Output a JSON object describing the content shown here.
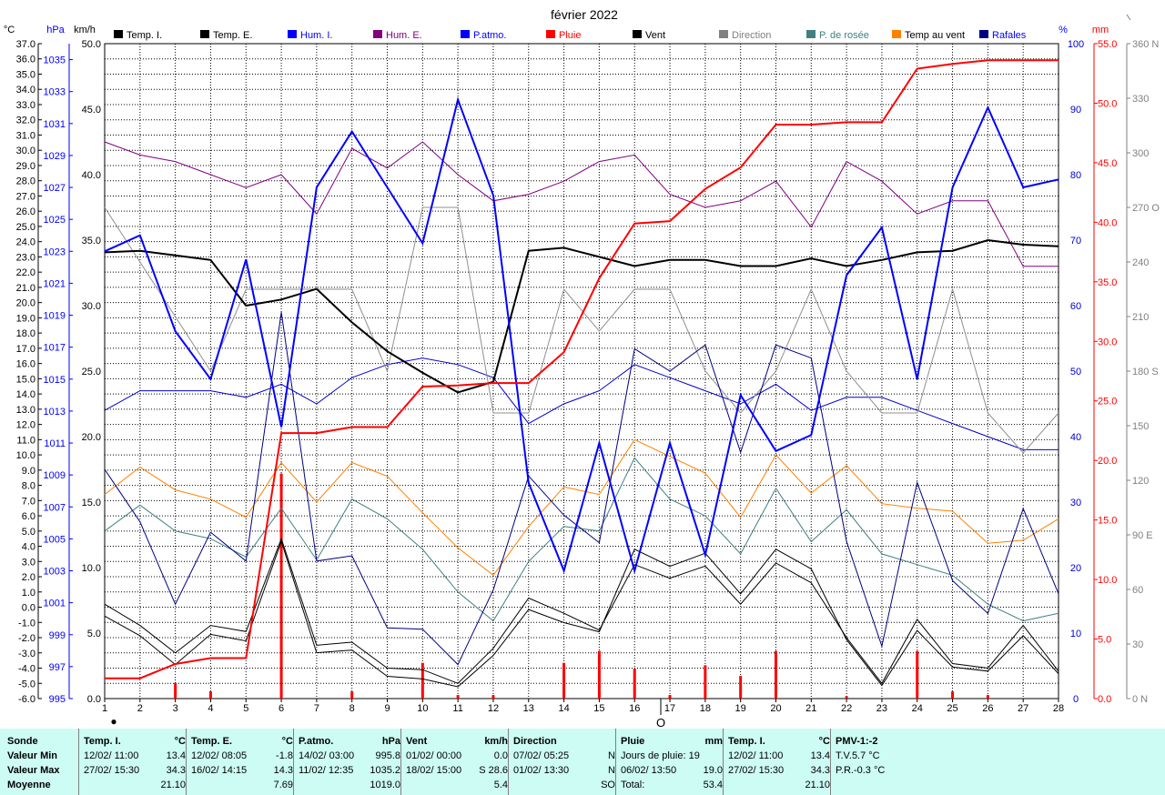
{
  "chart_data": {
    "type": "line",
    "title": "février 2022",
    "x": [
      1,
      2,
      3,
      4,
      5,
      6,
      7,
      8,
      9,
      10,
      11,
      12,
      13,
      14,
      15,
      16,
      17,
      18,
      19,
      20,
      21,
      22,
      23,
      24,
      25,
      26,
      27,
      28
    ],
    "x_tick_labels": [
      "1",
      "2",
      "3",
      "4",
      "5",
      "6",
      "7",
      "8",
      "9",
      "10",
      "11",
      "12",
      "13",
      "14",
      "15",
      "16",
      "17",
      "18",
      "19",
      "20",
      "21",
      "22",
      "23",
      "24",
      "25",
      "26",
      "27",
      "28"
    ],
    "x_markers": [
      "●",
      "O"
    ],
    "axes": {
      "temp_c": {
        "unit": "°C",
        "range": [
          -6.0,
          37.0
        ],
        "ticks": [
          "37.0",
          "36.0",
          "35.0",
          "34.0",
          "33.0",
          "32.0",
          "31.0",
          "30.0",
          "29.0",
          "28.0",
          "27.0",
          "26.0",
          "25.0",
          "24.0",
          "23.0",
          "22.0",
          "21.0",
          "20.0",
          "19.0",
          "18.0",
          "17.0",
          "16.0",
          "15.0",
          "14.0",
          "13.0",
          "12.0",
          "11.0",
          "10.0",
          "9.0",
          "8.0",
          "7.0",
          "6.0",
          "5.0",
          "4.0",
          "3.0",
          "2.0",
          "1.0",
          "0.0",
          "-1.0",
          "-2.0",
          "-3.0",
          "-4.0",
          "-5.0",
          "-6.0"
        ]
      },
      "pressure_hpa": {
        "unit": "hPa",
        "range": [
          995,
          1036
        ],
        "ticks": [
          "1035",
          "1033",
          "1031",
          "1029",
          "1027",
          "1025",
          "1023",
          "1021",
          "1019",
          "1017",
          "1015",
          "1013",
          "1011",
          "1009",
          "1007",
          "1005",
          "1003",
          "1001",
          "999",
          "997",
          "995"
        ]
      },
      "wind_kmh": {
        "unit": "km/h",
        "range": [
          0.0,
          50.0
        ],
        "ticks": [
          "50.0",
          "45.0",
          "40.0",
          "35.0",
          "30.0",
          "25.0",
          "20.0",
          "15.0",
          "10.0",
          "5.0",
          "0.0"
        ]
      },
      "humidity_pct": {
        "unit": "%",
        "range": [
          0,
          100
        ],
        "ticks": [
          "100",
          "90",
          "80",
          "70",
          "60",
          "50",
          "40",
          "30",
          "20",
          "10",
          "0"
        ]
      },
      "rain_mm": {
        "unit": "mm",
        "range": [
          0.0,
          55.0
        ],
        "ticks": [
          "55.0",
          "50.0",
          "45.0",
          "40.0",
          "35.0",
          "30.0",
          "25.0",
          "20.0",
          "15.0",
          "10.0",
          "5.0",
          "0.0"
        ]
      },
      "direction_deg": {
        "unit": "",
        "range": [
          0,
          360
        ],
        "ticks": [
          "360 N",
          "330",
          "300",
          "270 O",
          "240",
          "210",
          "180 S",
          "150",
          "120",
          "90 E",
          "60",
          "30",
          "0 N"
        ]
      }
    },
    "grid": true,
    "legend_position": "top",
    "series": [
      {
        "name": "Temp. I.",
        "axis": "temp_c",
        "color": "#000000",
        "width": 2,
        "values": [
          23.3,
          23.4,
          23.1,
          22.8,
          19.8,
          20.2,
          20.9,
          18.7,
          16.8,
          15.4,
          14.1,
          14.8,
          23.4,
          23.6,
          23.0,
          22.4,
          22.8,
          22.8,
          22.4,
          22.4,
          22.9,
          22.4,
          22.8,
          23.3,
          23.4,
          24.1,
          23.8,
          23.7
        ]
      },
      {
        "name": "Temp. E.",
        "axis": "temp_c",
        "color": "#000000",
        "width": 1,
        "values": [
          0.2,
          -1.2,
          -3.0,
          -1.2,
          -1.6,
          4.5,
          -2.5,
          -2.3,
          -4.0,
          -4.1,
          -5.0,
          -2.7,
          0.6,
          -0.4,
          -1.5,
          2.8,
          1.9,
          2.7,
          0.2,
          2.9,
          1.6,
          -2.0,
          -5.0,
          -0.8,
          -3.7,
          -4.0,
          -1.2,
          -4.2
        ]
      },
      {
        "name": "Hum. I.",
        "axis": "humidity_pct",
        "color": "#0000cc",
        "width": 1,
        "values": [
          44,
          47,
          47,
          47,
          46,
          48,
          45,
          49,
          51,
          52,
          51,
          49,
          42,
          45,
          47,
          51,
          49,
          47,
          45,
          48,
          44,
          46,
          46,
          44,
          42,
          40,
          38,
          38
        ]
      },
      {
        "name": "Hum. E.",
        "axis": "humidity_pct",
        "color": "#800080",
        "width": 1,
        "values": [
          85,
          83,
          82,
          80,
          78,
          80,
          74,
          84,
          81,
          85,
          80,
          76,
          77,
          79,
          82,
          83,
          77,
          75,
          76,
          79,
          72,
          82,
          79,
          74,
          76,
          76,
          66,
          66
        ]
      },
      {
        "name": "P.atmo.",
        "axis": "pressure_hpa",
        "color": "#0000ff",
        "width": 2,
        "values": [
          1023,
          1024,
          1018,
          1015,
          1022.5,
          1012,
          1027,
          1030.5,
          1027,
          1023.5,
          1032.5,
          1026.5,
          1008.5,
          1003,
          1011,
          1003,
          1011,
          1004,
          1014,
          1010.5,
          1011.5,
          1021.5,
          1024.5,
          1015,
          1027,
          1032,
          1027,
          1027.5
        ]
      },
      {
        "name": "Pluie",
        "axis": "rain_mm",
        "color": "#ff0000",
        "width": 2,
        "values": [
          1.7,
          1.7,
          2.9,
          3.4,
          3.4,
          22.3,
          22.3,
          22.8,
          22.8,
          26.2,
          26.3,
          26.5,
          26.5,
          29.1,
          35.3,
          39.9,
          40.1,
          42.8,
          44.6,
          48.2,
          48.2,
          48.4,
          48.4,
          52.9,
          53.3,
          53.6,
          53.6,
          53.6
        ]
      },
      {
        "name": "Vent",
        "axis": "wind_kmh",
        "color": "#000000",
        "width": 1,
        "values": [
          6.3,
          4.8,
          2.6,
          4.9,
          4.4,
          12.0,
          3.5,
          3.7,
          1.7,
          1.5,
          0.9,
          3.3,
          6.8,
          5.8,
          5.1,
          11.4,
          10.1,
          11.1,
          8.0,
          11.4,
          9.9,
          4.5,
          1.0,
          5.2,
          2.4,
          2.1,
          4.8,
          1.9
        ]
      },
      {
        "name": "Direction",
        "axis": "direction_deg",
        "color": "#909090",
        "width": 1,
        "values": [
          270,
          240,
          210,
          180,
          225,
          225,
          225,
          225,
          180,
          270,
          270,
          157,
          157,
          225,
          202,
          225,
          225,
          180,
          157,
          180,
          225,
          180,
          157,
          157,
          225,
          157,
          135,
          157
        ]
      },
      {
        "name": "P. de rosée",
        "axis": "temp_c",
        "color": "#408080",
        "width": 1,
        "values": [
          5.0,
          6.7,
          5.0,
          4.5,
          3.3,
          6.5,
          3.1,
          7.1,
          5.8,
          3.8,
          1.0,
          -0.9,
          3.0,
          5.3,
          5.0,
          9.8,
          7.1,
          6.0,
          3.5,
          7.8,
          4.3,
          6.4,
          3.5,
          2.8,
          2.1,
          0.2,
          -0.9,
          -0.4
        ]
      },
      {
        "name": "Temp au vent",
        "axis": "temp_c",
        "color": "#ff8000",
        "width": 1,
        "values": [
          7.4,
          9.2,
          7.7,
          7.1,
          5.9,
          9.5,
          6.9,
          9.5,
          8.6,
          6.2,
          3.9,
          2.1,
          5.3,
          7.9,
          7.4,
          11.0,
          9.9,
          8.8,
          5.9,
          10.0,
          7.5,
          9.3,
          6.8,
          6.5,
          6.3,
          4.2,
          4.4,
          5.8
        ]
      },
      {
        "name": "Rafales",
        "axis": "wind_kmh",
        "color": "#000080",
        "width": 1,
        "values": [
          17.5,
          13.5,
          7.2,
          12.7,
          10.5,
          29.5,
          10.5,
          10.9,
          5.4,
          5.3,
          2.6,
          8.3,
          17.0,
          14.0,
          11.9,
          26.7,
          25.0,
          27.0,
          18.8,
          27.0,
          26.0,
          12.0,
          4.0,
          16.5,
          9.0,
          6.5,
          14.5,
          8.0
        ]
      }
    ],
    "rain_bars": {
      "axis": "rain_mm",
      "color": "#ff0000",
      "x": [
        3,
        4,
        6,
        8,
        10,
        11,
        12,
        14,
        15,
        16,
        17,
        18,
        19,
        20,
        22,
        24,
        25,
        26
      ],
      "values": [
        1.3,
        0.6,
        18.9,
        0.6,
        3.0,
        0.3,
        0.3,
        3.0,
        4.0,
        2.5,
        0.3,
        2.8,
        1.9,
        4.0,
        0.2,
        4.0,
        0.6,
        0.3
      ]
    }
  },
  "legend": [
    {
      "label": "Temp. I.",
      "color": "#000000"
    },
    {
      "label": "Temp. E.",
      "color": "#000000"
    },
    {
      "label": "Hum. I.",
      "color": "#0000ff"
    },
    {
      "label": "Hum. E.",
      "color": "#800080"
    },
    {
      "label": "P.atmo.",
      "color": "#0000ff"
    },
    {
      "label": "Pluie",
      "color": "#ff0000"
    },
    {
      "label": "Vent",
      "color": "#000000"
    },
    {
      "label": "Direction",
      "color": "#808080"
    },
    {
      "label": "P. de rosée",
      "color": "#408080"
    },
    {
      "label": "Temp au vent",
      "color": "#ff8000"
    },
    {
      "label": "Rafales",
      "color": "#000080"
    }
  ],
  "stats": {
    "rows": [
      "Sonde",
      "Valeur Min",
      "Valeur Max",
      "Moyenne"
    ],
    "columns": [
      {
        "title": "Temp. I.",
        "unit": "°C",
        "min_time": "12/02/ 11:00",
        "min": "13.4",
        "max_time": "27/02/ 15:30",
        "max": "34.3",
        "avg": "21.10"
      },
      {
        "title": "Temp. E.",
        "unit": "°C",
        "min_time": "12/02/ 08:05",
        "min": "-1.8",
        "max_time": "16/02/ 14:15",
        "max": "14.3",
        "avg": "7.69"
      },
      {
        "title": "P.atmo.",
        "unit": "hPa",
        "min_time": "14/02/ 03:00",
        "min": "995.8",
        "max_time": "11/02/ 12:35",
        "max": "1035.2",
        "avg": "1019.0"
      },
      {
        "title": "Vent",
        "unit": "km/h",
        "min_time": "01/02/ 00:00",
        "min": "0.0",
        "max_time": "18/02/ 15:00",
        "max": "S 28.6",
        "avg": "5.4"
      },
      {
        "title": "Direction",
        "unit": "",
        "min_time": "07/02/ 05:25",
        "min": "N",
        "max_time": "01/02/ 13:30",
        "max": "N",
        "avg": "SO"
      },
      {
        "title": "Pluie",
        "unit": "mm",
        "min_time": "Jours de pluie: 19",
        "min": "",
        "max_time": "06/02/ 13:50",
        "max": "19.0",
        "avg_label": "Total:",
        "avg": "53.4"
      },
      {
        "title": "Temp. I.",
        "unit": "°C",
        "min_time": "12/02/ 11:00",
        "min": "13.4",
        "max_time": "27/02/ 15:30",
        "max": "34.3",
        "avg": "21.10"
      },
      {
        "title": "PMV-1:-2",
        "unit": "",
        "line1": "T.V.5.7 °C",
        "line2": "P.R.-0.3 °C"
      }
    ]
  }
}
